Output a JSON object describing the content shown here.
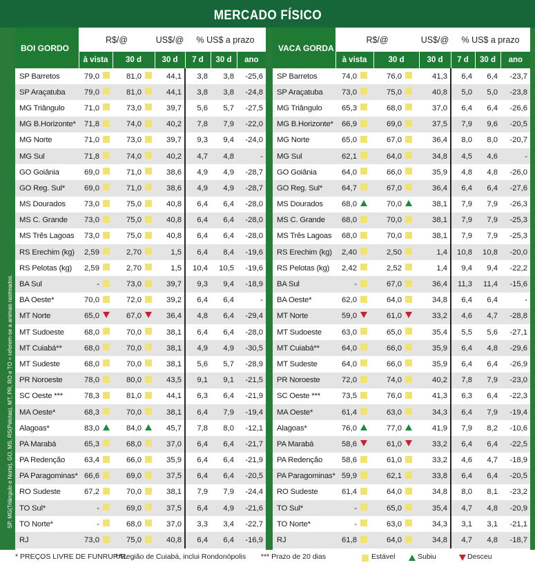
{
  "title": "MERCADO FÍSICO",
  "side_note": "SP, MG(Triângulo e Norte), GO, MS, RS(Pelotas), MT, PR, RO e TO = referem-se a animais rastreados.",
  "headers": {
    "real": "R$/@",
    "usd": "US$/@",
    "prazo": "% US$ a prazo",
    "avista": "à vista",
    "d30": "30 d",
    "d7": "7 d",
    "ano": "ano"
  },
  "colors": {
    "green_dark": "#17663a",
    "green": "#1f7a34",
    "stable": "#f2e272",
    "up": "#1d8a3a",
    "down": "#c0262c"
  },
  "boi": {
    "label": "BOI GORDO",
    "rows": [
      [
        "SP Barretos",
        "79,0",
        "s",
        "81,0",
        "s",
        "44,1",
        "3,8",
        "3,8",
        "-25,6"
      ],
      [
        "SP Araçatuba",
        "79,0",
        "s",
        "81,0",
        "s",
        "44,1",
        "3,8",
        "3,8",
        "-24,8"
      ],
      [
        "MG Triângulo",
        "71,0",
        "s",
        "73,0",
        "s",
        "39,7",
        "5,6",
        "5,7",
        "-27,5"
      ],
      [
        "MG B.Horizonte*",
        "71,8",
        "s",
        "74,0",
        "s",
        "40,2",
        "7,8",
        "7,9",
        "-22,0"
      ],
      [
        "MG Norte",
        "71,0",
        "s",
        "73,0",
        "s",
        "39,7",
        "9,3",
        "9,4",
        "-24,0"
      ],
      [
        "MG Sul",
        "71,8",
        "s",
        "74,0",
        "s",
        "40,2",
        "4,7",
        "4,8",
        "-"
      ],
      [
        "GO Goiânia",
        "69,0",
        "s",
        "71,0",
        "s",
        "38,6",
        "4,9",
        "4,9",
        "-28,7"
      ],
      [
        "GO Reg. Sul*",
        "69,0",
        "s",
        "71,0",
        "s",
        "38,6",
        "4,9",
        "4,9",
        "-28,7"
      ],
      [
        "MS Dourados",
        "73,0",
        "s",
        "75,0",
        "s",
        "40,8",
        "6,4",
        "6,4",
        "-28,0"
      ],
      [
        "MS C. Grande",
        "73,0",
        "s",
        "75,0",
        "s",
        "40,8",
        "6,4",
        "6,4",
        "-28,0"
      ],
      [
        "MS Três Lagoas",
        "73,0",
        "s",
        "75,0",
        "s",
        "40,8",
        "6,4",
        "6,4",
        "-28,0"
      ],
      [
        "RS Erechim (kg)",
        "2,59",
        "s",
        "2,70",
        "s",
        "1,5",
        "6,4",
        "8,4",
        "-19,6"
      ],
      [
        "RS Pelotas (kg)",
        "2,59",
        "s",
        "2,70",
        "s",
        "1,5",
        "10,4",
        "10,5",
        "-19,6"
      ],
      [
        "BA Sul",
        "-",
        "s",
        "73,0",
        "s",
        "39,7",
        "9,3",
        "9,4",
        "-18,9"
      ],
      [
        "BA Oeste*",
        "70,0",
        "s",
        "72,0",
        "s",
        "39,2",
        "6,4",
        "6,4",
        "-"
      ],
      [
        "MT Norte",
        "65,0",
        "d",
        "67,0",
        "d",
        "36,4",
        "4,8",
        "6,4",
        "-29,4"
      ],
      [
        "MT Sudoeste",
        "68,0",
        "s",
        "70,0",
        "s",
        "38,1",
        "6,4",
        "6,4",
        "-28,0"
      ],
      [
        "MT Cuiabá**",
        "68,0",
        "s",
        "70,0",
        "s",
        "38,1",
        "4,9",
        "4,9",
        "-30,5"
      ],
      [
        "MT Sudeste",
        "68,0",
        "s",
        "70,0",
        "s",
        "38,1",
        "5,6",
        "5,7",
        "-28,9"
      ],
      [
        "PR Noroeste",
        "78,0",
        "s",
        "80,0",
        "s",
        "43,5",
        "9,1",
        "9,1",
        "-21,5"
      ],
      [
        "SC Oeste ***",
        "78,3",
        "s",
        "81,0",
        "s",
        "44,1",
        "6,3",
        "6,4",
        "-21,9"
      ],
      [
        "MA Oeste*",
        "68,3",
        "s",
        "70,0",
        "s",
        "38,1",
        "6,4",
        "7,9",
        "-19,4"
      ],
      [
        "Alagoas*",
        "83,0",
        "u",
        "84,0",
        "u",
        "45,7",
        "7,8",
        "8,0",
        "-12,1"
      ],
      [
        "PA Marabá",
        "65,3",
        "s",
        "68,0",
        "s",
        "37,0",
        "6,4",
        "6,4",
        "-21,7"
      ],
      [
        "PA Redenção",
        "63,4",
        "s",
        "66,0",
        "s",
        "35,9",
        "6,4",
        "6,4",
        "-21,9"
      ],
      [
        "PA Paragominas*",
        "66,6",
        "s",
        "69,0",
        "s",
        "37,5",
        "6,4",
        "6,4",
        "-20,5"
      ],
      [
        "RO Sudeste",
        "67,2",
        "s",
        "70,0",
        "s",
        "38,1",
        "7,9",
        "7,9",
        "-24,4"
      ],
      [
        "TO Sul*",
        "-",
        "s",
        "69,0",
        "s",
        "37,5",
        "6,4",
        "4,9",
        "-21,6"
      ],
      [
        "TO Norte*",
        "-",
        "s",
        "68,0",
        "s",
        "37,0",
        "3,3",
        "3,4",
        "-22,7"
      ],
      [
        "RJ",
        "73,0",
        "s",
        "75,0",
        "s",
        "40,8",
        "6,4",
        "6,4",
        "-16,9"
      ]
    ]
  },
  "vaca": {
    "label": "VACA GORDA",
    "rows": [
      [
        "SP Barretos",
        "74,0",
        "s",
        "76,0",
        "s",
        "41,3",
        "6,4",
        "6,4",
        "-23,7"
      ],
      [
        "SP Araçatuba",
        "73,0",
        "s",
        "75,0",
        "s",
        "40,8",
        "5,0",
        "5,0",
        "-23,8"
      ],
      [
        "MG Triângulo",
        "65,3",
        "s",
        "68,0",
        "s",
        "37,0",
        "6,4",
        "6,4",
        "-26,6"
      ],
      [
        "MG B.Horizonte*",
        "66,9",
        "s",
        "69,0",
        "s",
        "37,5",
        "7,9",
        "9,6",
        "-20,5"
      ],
      [
        "MG Norte",
        "65,0",
        "s",
        "67,0",
        "s",
        "36,4",
        "8,0",
        "8,0",
        "-20,7"
      ],
      [
        "MG Sul",
        "62,1",
        "s",
        "64,0",
        "s",
        "34,8",
        "4,5",
        "4,6",
        "-"
      ],
      [
        "GO Goiânia",
        "64,0",
        "s",
        "66,0",
        "s",
        "35,9",
        "4,8",
        "4,8",
        "-26,0"
      ],
      [
        "GO Reg. Sul*",
        "64,7",
        "s",
        "67,0",
        "s",
        "36,4",
        "6,4",
        "6,4",
        "-27,6"
      ],
      [
        "MS Dourados",
        "68,0",
        "u",
        "70,0",
        "u",
        "38,1",
        "7,9",
        "7,9",
        "-26,3"
      ],
      [
        "MS C. Grande",
        "68,0",
        "s",
        "70,0",
        "s",
        "38,1",
        "7,9",
        "7,9",
        "-25,3"
      ],
      [
        "MS Três Lagoas",
        "68,0",
        "s",
        "70,0",
        "s",
        "38,1",
        "7,9",
        "7,9",
        "-25,3"
      ],
      [
        "RS Erechim (kg)",
        "2,40",
        "s",
        "2,50",
        "s",
        "1,4",
        "10,8",
        "10,8",
        "-20,0"
      ],
      [
        "RS Pelotas (kg)",
        "2,42",
        "s",
        "2,52",
        "s",
        "1,4",
        "9,4",
        "9,4",
        "-22,2"
      ],
      [
        "BA Sul",
        "-",
        "s",
        "67,0",
        "s",
        "36,4",
        "11,3",
        "11,4",
        "-15,6"
      ],
      [
        "BA Oeste*",
        "62,0",
        "s",
        "64,0",
        "s",
        "34,8",
        "6,4",
        "6,4",
        "-"
      ],
      [
        "MT Norte",
        "59,0",
        "d",
        "61,0",
        "d",
        "33,2",
        "4,6",
        "4,7",
        "-28,8"
      ],
      [
        "MT Sudoeste",
        "63,0",
        "s",
        "65,0",
        "s",
        "35,4",
        "5,5",
        "5,6",
        "-27,1"
      ],
      [
        "MT Cuiabá**",
        "64,0",
        "s",
        "66,0",
        "s",
        "35,9",
        "6,4",
        "4,8",
        "-29,6"
      ],
      [
        "MT Sudeste",
        "64,0",
        "s",
        "66,0",
        "s",
        "35,9",
        "6,4",
        "6,4",
        "-26,9"
      ],
      [
        "PR Noroeste",
        "72,0",
        "s",
        "74,0",
        "s",
        "40,2",
        "7,8",
        "7,9",
        "-23,0"
      ],
      [
        "SC Oeste ***",
        "73,5",
        "s",
        "76,0",
        "s",
        "41,3",
        "6,3",
        "6,4",
        "-22,3"
      ],
      [
        "MA Oeste*",
        "61,4",
        "s",
        "63,0",
        "s",
        "34,3",
        "6,4",
        "7,9",
        "-19,4"
      ],
      [
        "Alagoas*",
        "76,0",
        "u",
        "77,0",
        "u",
        "41,9",
        "7,9",
        "8,2",
        "-10,6"
      ],
      [
        "PA Marabá",
        "58,6",
        "d",
        "61,0",
        "d",
        "33,2",
        "6,4",
        "6,4",
        "-22,5"
      ],
      [
        "PA Redenção",
        "58,6",
        "s",
        "61,0",
        "s",
        "33,2",
        "4,6",
        "4,7",
        "-18,9"
      ],
      [
        "PA Paragominas*",
        "59,9",
        "s",
        "62,1",
        "s",
        "33,8",
        "6,4",
        "6,4",
        "-20,5"
      ],
      [
        "RO Sudeste",
        "61,4",
        "s",
        "64,0",
        "s",
        "34,8",
        "8,0",
        "8,1",
        "-23,2"
      ],
      [
        "TO Sul*",
        "-",
        "s",
        "65,0",
        "s",
        "35,4",
        "4,7",
        "4,8",
        "-20,9"
      ],
      [
        "TO Norte*",
        "-",
        "s",
        "63,0",
        "s",
        "34,3",
        "3,1",
        "3,1",
        "-21,1"
      ],
      [
        "RJ",
        "61,8",
        "s",
        "64,0",
        "s",
        "34,8",
        "4,7",
        "4,8",
        "-18,7"
      ]
    ]
  },
  "footer": {
    "n1": "* PREÇOS LIVRE DE FUNRURAL",
    "n2": "**Região de Cuiabá, inclui Rondonópolis",
    "n3": "*** Prazo de 20 dias",
    "stable": "Estável",
    "up": "Subiu",
    "down": "Desceu"
  }
}
